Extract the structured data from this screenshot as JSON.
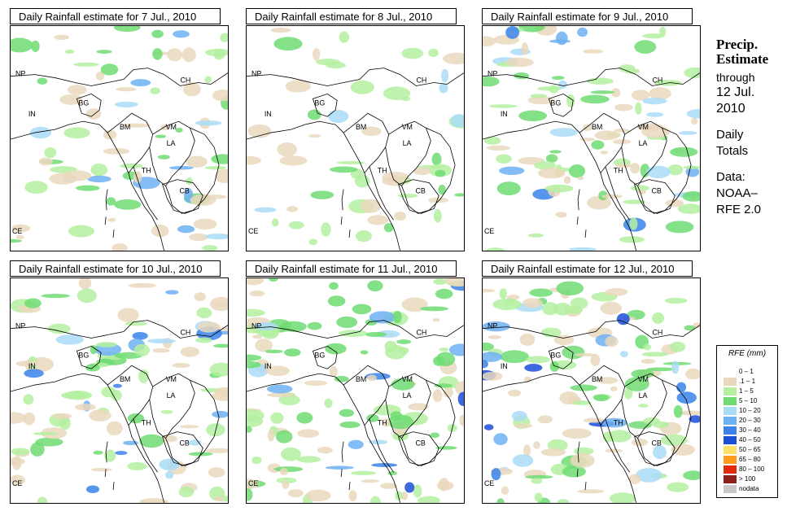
{
  "panels": [
    {
      "title": "Daily Rainfall estimate for  7 Jul., 2010"
    },
    {
      "title": "Daily Rainfall estimate for  8 Jul., 2010"
    },
    {
      "title": "Daily Rainfall estimate for  9 Jul., 2010"
    },
    {
      "title": "Daily Rainfall estimate for  10 Jul., 2010"
    },
    {
      "title": "Daily Rainfall estimate for  11 Jul., 2010"
    },
    {
      "title": "Daily Rainfall estimate for  12 Jul., 2010"
    }
  ],
  "region_labels": {
    "np": "NP",
    "in": "IN",
    "bg": "BG",
    "ch": "CH",
    "bm": "BM",
    "vm": "VM",
    "la": "LA",
    "th": "TH",
    "cb": "CB",
    "ce": "CE"
  },
  "side": {
    "heading_line1": "Precip.",
    "heading_line2": "Estimate",
    "through": "through",
    "date_line1": "12 Jul.",
    "date_line2": "2010",
    "daily_line1": "Daily",
    "daily_line2": "Totals",
    "data_line1": "Data:",
    "data_line2": "NOAA–",
    "data_line3": "RFE 2.0"
  },
  "legend": {
    "title": "RFE (mm)",
    "items": [
      {
        "label": "0 – 1",
        "color": "#ffffff"
      },
      {
        "label": ".1 – 1",
        "color": "#ead8bd"
      },
      {
        "label": "1 – 5",
        "color": "#b4f0a0"
      },
      {
        "label": "5 – 10",
        "color": "#6fdc72"
      },
      {
        "label": "10 – 20",
        "color": "#a9dcf7"
      },
      {
        "label": "20 – 30",
        "color": "#6fb2f3"
      },
      {
        "label": "30 – 40",
        "color": "#3b82ea"
      },
      {
        "label": "40 – 50",
        "color": "#1b4fd8"
      },
      {
        "label": "50 – 65",
        "color": "#ffe066"
      },
      {
        "label": "65 – 80",
        "color": "#ff9c1f"
      },
      {
        "label": "80 – 100",
        "color": "#e02a0a"
      },
      {
        "label": "> 100",
        "color": "#8f1f1a"
      },
      {
        "label": "nodata",
        "color": "#c8c8c8"
      }
    ]
  }
}
